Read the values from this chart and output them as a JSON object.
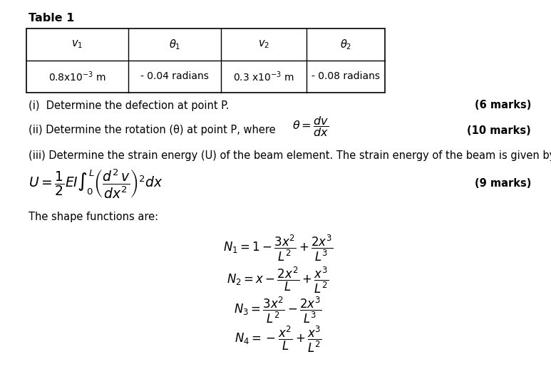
{
  "title": "Table 1",
  "table_headers_latex": [
    "$v_1$",
    "$\\theta_1$",
    "$v_2$",
    "$\\theta_2$"
  ],
  "table_values": [
    "0.8x10$^{-3}$ m",
    "- 0.04 radians",
    "0.3 x10$^{-3}$ m",
    "- 0.08 radians"
  ],
  "item_i": "(i)  Determine the defection at point P.",
  "item_i_marks": "(6 marks)",
  "item_ii_text": "(ii) Determine the rotation (θ) at point P, where  $\\theta = \\dfrac{dv}{dx}$",
  "item_ii_marks": "(10 marks)",
  "item_iii": "(iii) Determine the strain energy (U) of the beam element. The strain energy of the beam is given by,",
  "item_iii_marks": "(9 marks)",
  "U_formula": "$U = \\dfrac{1}{2} EI \\int_0^L \\left(\\dfrac{d^2\\,v}{dx^2}\\right)^2 dx$",
  "shape_fn_label": "The shape functions are:",
  "N1": "$N_1 = 1 - \\dfrac{3x^2}{L^2} + \\dfrac{2x^3}{L^3}$",
  "N2": "$N_2 = x - \\dfrac{2x^2}{L} + \\dfrac{x^3}{L^2}$",
  "N3": "$N_3 = \\dfrac{3x^2}{L^2} - \\dfrac{2x^3}{L^3}$",
  "N4": "$N_4 = -\\dfrac{x^2}{L} + \\dfrac{x^3}{L^2}$",
  "background": "#ffffff",
  "text_color": "#000000",
  "font_size": 10.5
}
